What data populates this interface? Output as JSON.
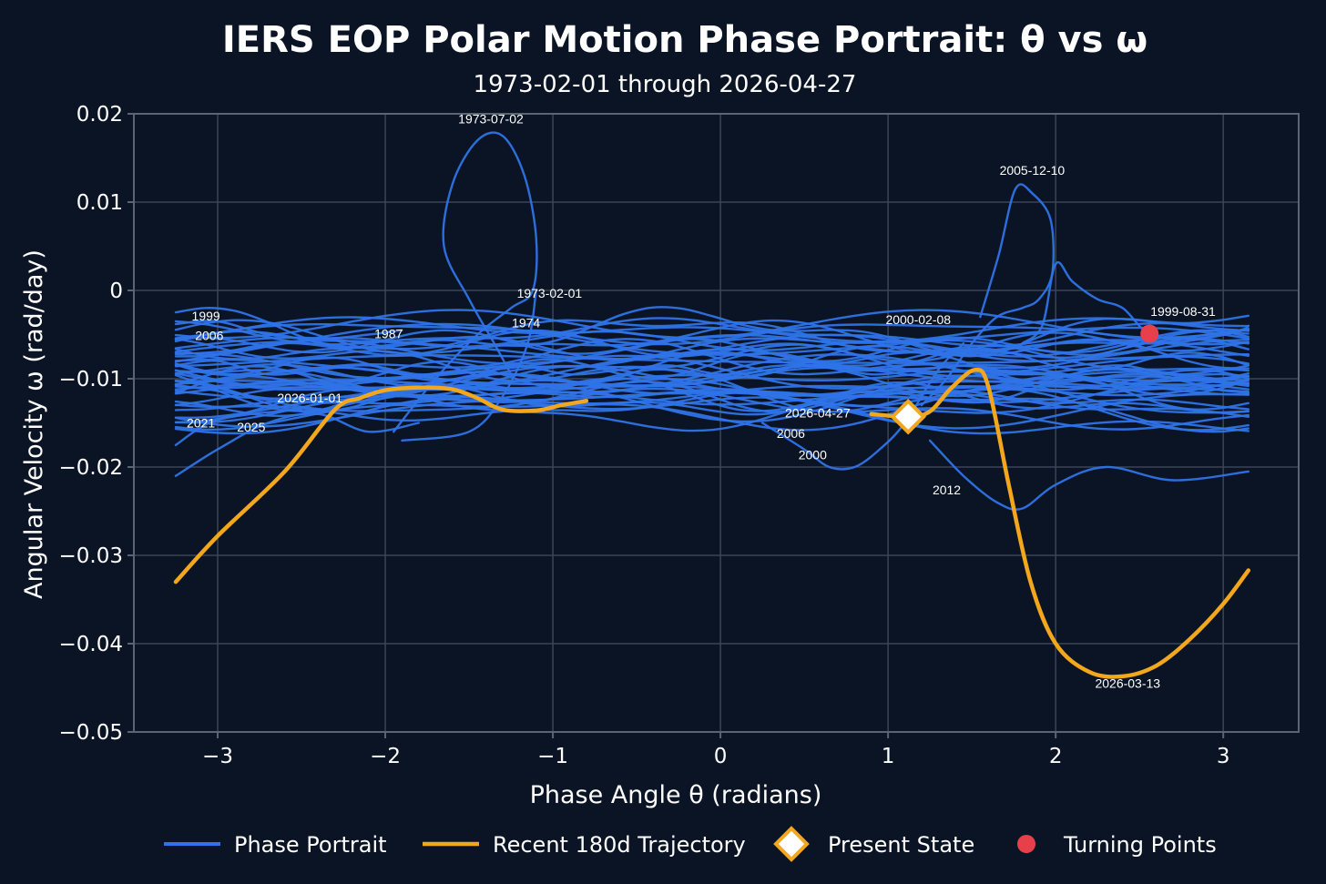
{
  "chart_data": {
    "type": "line",
    "title": "IERS EOP Polar Motion Phase Portrait: θ vs ω",
    "subtitle": "1973-02-01 through 2026-04-27",
    "xlabel": "Phase Angle θ (radians)",
    "ylabel": "Angular Velocity ω (rad/day)",
    "xlim": [
      -3.5,
      3.45
    ],
    "ylim": [
      -0.05,
      0.02
    ],
    "xticks": [
      -3,
      -2,
      -1,
      0,
      1,
      2,
      3
    ],
    "xtick_labels": [
      "−3",
      "−2",
      "−1",
      "0",
      "1",
      "2",
      "3"
    ],
    "yticks": [
      0.02,
      0.01,
      0,
      -0.01,
      -0.02,
      -0.03,
      -0.04,
      -0.05
    ],
    "ytick_labels": [
      "0.02",
      "0.01",
      "0",
      "−0.01",
      "−0.02",
      "−0.03",
      "−0.04",
      "−0.05"
    ],
    "grid": true,
    "legend_position": "bottom",
    "colors": {
      "background": "#0b1424",
      "phase_portrait": "#2f73e8",
      "recent": "#f2a71c",
      "present_fill": "#ffffff",
      "present_edge": "#f2a71c",
      "turning_point": "#e8404a"
    },
    "legend": [
      {
        "label": "Phase Portrait",
        "marker": "line",
        "color": "#2f73e8"
      },
      {
        "label": "Recent 180d Trajectory",
        "marker": "line",
        "color": "#f2a71c"
      },
      {
        "label": "Present State",
        "marker": "diamond",
        "color": "#f2a71c"
      },
      {
        "label": "Turning Points",
        "marker": "circle",
        "color": "#e8404a"
      }
    ],
    "series": [
      {
        "name": "Phase Portrait",
        "points": [
          [
            -3.25,
            -0.0085
          ],
          [
            -3.0,
            -0.008
          ],
          [
            -2.7,
            -0.0095
          ],
          [
            -2.4,
            -0.009
          ],
          [
            -2.1,
            -0.0085
          ],
          [
            -1.8,
            -0.0095
          ],
          [
            -1.5,
            -0.009
          ],
          [
            -1.2,
            -0.0085
          ],
          [
            -0.9,
            -0.0095
          ],
          [
            -0.6,
            -0.009
          ],
          [
            -0.3,
            -0.0085
          ],
          [
            0.0,
            -0.0095
          ],
          [
            0.3,
            -0.009
          ],
          [
            0.6,
            -0.0085
          ],
          [
            0.9,
            -0.0095
          ],
          [
            1.2,
            -0.009
          ],
          [
            1.5,
            -0.0085
          ],
          [
            1.8,
            -0.0095
          ],
          [
            2.1,
            -0.009
          ],
          [
            2.4,
            -0.0085
          ],
          [
            2.7,
            -0.0095
          ],
          [
            3.0,
            -0.009
          ],
          [
            3.15,
            -0.0085
          ]
        ]
      },
      {
        "name": "Recent 180d Trajectory",
        "points": [
          [
            -3.25,
            -0.033
          ],
          [
            -3.0,
            -0.0278
          ],
          [
            -2.6,
            -0.0205
          ],
          [
            -2.3,
            -0.0135
          ],
          [
            -2.15,
            -0.0122
          ],
          [
            -2.0,
            -0.0113
          ],
          [
            -1.8,
            -0.011
          ],
          [
            -1.6,
            -0.0112
          ],
          [
            -1.45,
            -0.0122
          ],
          [
            -1.3,
            -0.0135
          ],
          [
            -1.1,
            -0.0136
          ],
          [
            -0.95,
            -0.013
          ],
          [
            -0.8,
            -0.0125
          ],
          [
            -0.55,
            -0.0128
          ],
          [
            0.9,
            -0.014
          ],
          [
            1.12,
            -0.0143
          ],
          [
            1.25,
            -0.0137
          ],
          [
            1.38,
            -0.011
          ],
          [
            1.52,
            -0.009
          ],
          [
            1.6,
            -0.011
          ],
          [
            1.72,
            -0.022
          ],
          [
            1.85,
            -0.033
          ],
          [
            2.0,
            -0.04
          ],
          [
            2.2,
            -0.0432
          ],
          [
            2.4,
            -0.0437
          ],
          [
            2.6,
            -0.0425
          ],
          [
            2.8,
            -0.0395
          ],
          [
            3.0,
            -0.0355
          ],
          [
            3.15,
            -0.0317
          ]
        ]
      }
    ],
    "present_state": {
      "x": 1.12,
      "y": -0.0143,
      "label": "2026-04-27"
    },
    "turning_points": [
      {
        "x": 2.56,
        "y": -0.0049
      }
    ],
    "annotations": [
      {
        "text": "1973-07-02",
        "x": -1.37,
        "y": 0.0189
      },
      {
        "text": "1973-02-01",
        "x": -1.02,
        "y": -0.0008
      },
      {
        "text": "1974",
        "x": -1.16,
        "y": -0.0042
      },
      {
        "text": "1999",
        "x": -3.07,
        "y": -0.0034
      },
      {
        "text": "2006",
        "x": -3.05,
        "y": -0.0056
      },
      {
        "text": "1987",
        "x": -1.98,
        "y": -0.0054
      },
      {
        "text": "2026-01-01",
        "x": -2.45,
        "y": -0.0127
      },
      {
        "text": "2021",
        "x": -3.1,
        "y": -0.0155
      },
      {
        "text": "2025",
        "x": -2.8,
        "y": -0.016
      },
      {
        "text": "2006",
        "x": 0.42,
        "y": -0.0167
      },
      {
        "text": "2000",
        "x": 0.55,
        "y": -0.0191
      },
      {
        "text": "2026-04-27",
        "x": 0.58,
        "y": -0.0144
      },
      {
        "text": "2000-02-08",
        "x": 1.18,
        "y": -0.0038
      },
      {
        "text": "2005-12-10",
        "x": 1.86,
        "y": 0.0131
      },
      {
        "text": "1999-08-31",
        "x": 2.76,
        "y": -0.0029
      },
      {
        "text": "2012",
        "x": 1.35,
        "y": -0.0231
      },
      {
        "text": "2026-03-13",
        "x": 2.43,
        "y": -0.045
      }
    ]
  }
}
